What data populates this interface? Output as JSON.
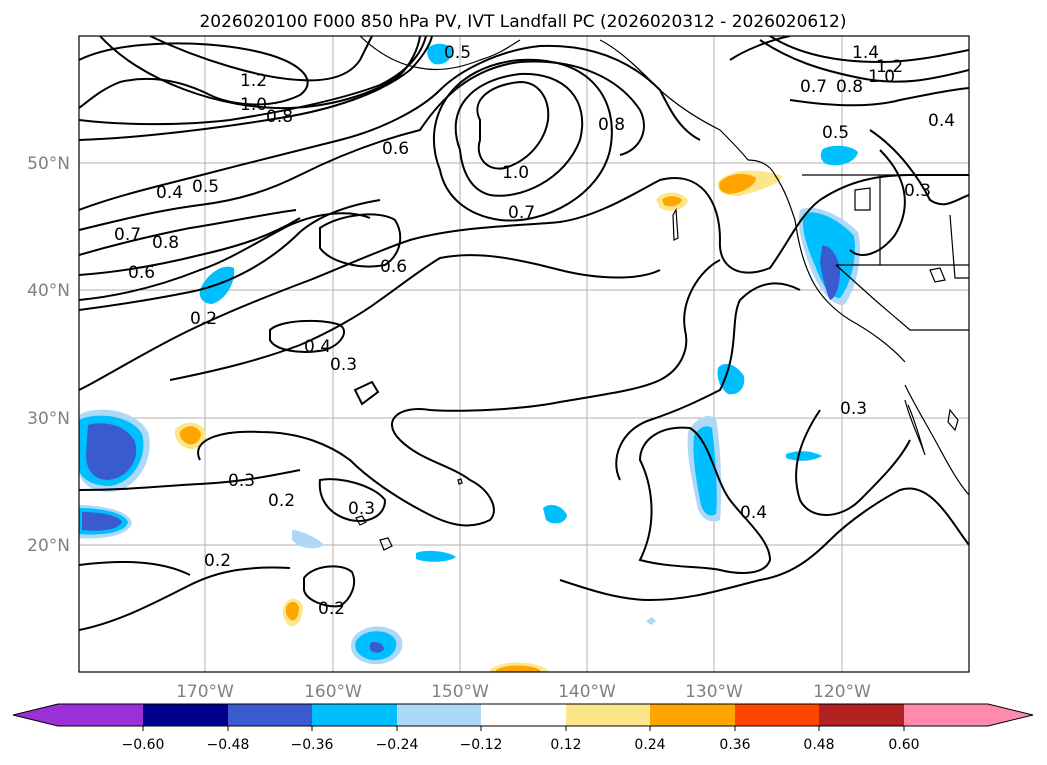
{
  "title": "2026020100 F000 850 hPa PV, IVT Landfall PC (2026020312 - 2026020612)",
  "map": {
    "lon_range": [
      180,
      110
    ],
    "lat_range": [
      10,
      60
    ],
    "lat_ticks": [
      "50°N",
      "40°N",
      "30°N",
      "20°N"
    ],
    "lon_ticks": [
      "170°W",
      "160°W",
      "150°W",
      "140°W",
      "130°W",
      "120°W"
    ],
    "pv_contour_labels": [
      {
        "text": "0.5"
      },
      {
        "text": "1.4"
      },
      {
        "text": "1.2"
      },
      {
        "text": "1.0"
      },
      {
        "text": "0.8"
      },
      {
        "text": "0.7"
      },
      {
        "text": "1.2"
      },
      {
        "text": "1.0"
      },
      {
        "text": "0.8"
      },
      {
        "text": "0.8"
      },
      {
        "text": "0.4"
      },
      {
        "text": "0.6"
      },
      {
        "text": "1.0"
      },
      {
        "text": "0.4"
      },
      {
        "text": "0.5"
      },
      {
        "text": "0.7"
      },
      {
        "text": "0.7"
      },
      {
        "text": "0.8"
      },
      {
        "text": "0.6"
      },
      {
        "text": "0.6"
      },
      {
        "text": "0.2"
      },
      {
        "text": "0.4"
      },
      {
        "text": "0.3"
      },
      {
        "text": "0.3"
      },
      {
        "text": "0.3"
      },
      {
        "text": "0.2"
      },
      {
        "text": "0.3"
      },
      {
        "text": "0.4"
      },
      {
        "text": "0.2"
      },
      {
        "text": "0.2"
      },
      {
        "text": "0.5"
      },
      {
        "text": "0.3"
      }
    ]
  },
  "colorbar": {
    "colors": [
      "#9b30d9",
      "#00008b",
      "#3a5bd0",
      "#00bfff",
      "#add8f7",
      "#ffffff",
      "#fce68a",
      "#ffa500",
      "#ff4500",
      "#b22222",
      "#ff8aad",
      "#ff8aad"
    ],
    "labels": [
      "−0.60",
      "−0.48",
      "−0.36",
      "−0.24",
      "−0.12",
      "0.12",
      "0.24",
      "0.36",
      "0.48",
      "0.60"
    ]
  },
  "colors": {
    "neg_light": "#add8f7",
    "neg_mid": "#00bfff",
    "neg_strong": "#3a5bd0",
    "neg_stronger": "#00008b",
    "pos_light": "#fce68a",
    "pos_mid": "#ffa500",
    "grid": "#b0b0b0"
  }
}
